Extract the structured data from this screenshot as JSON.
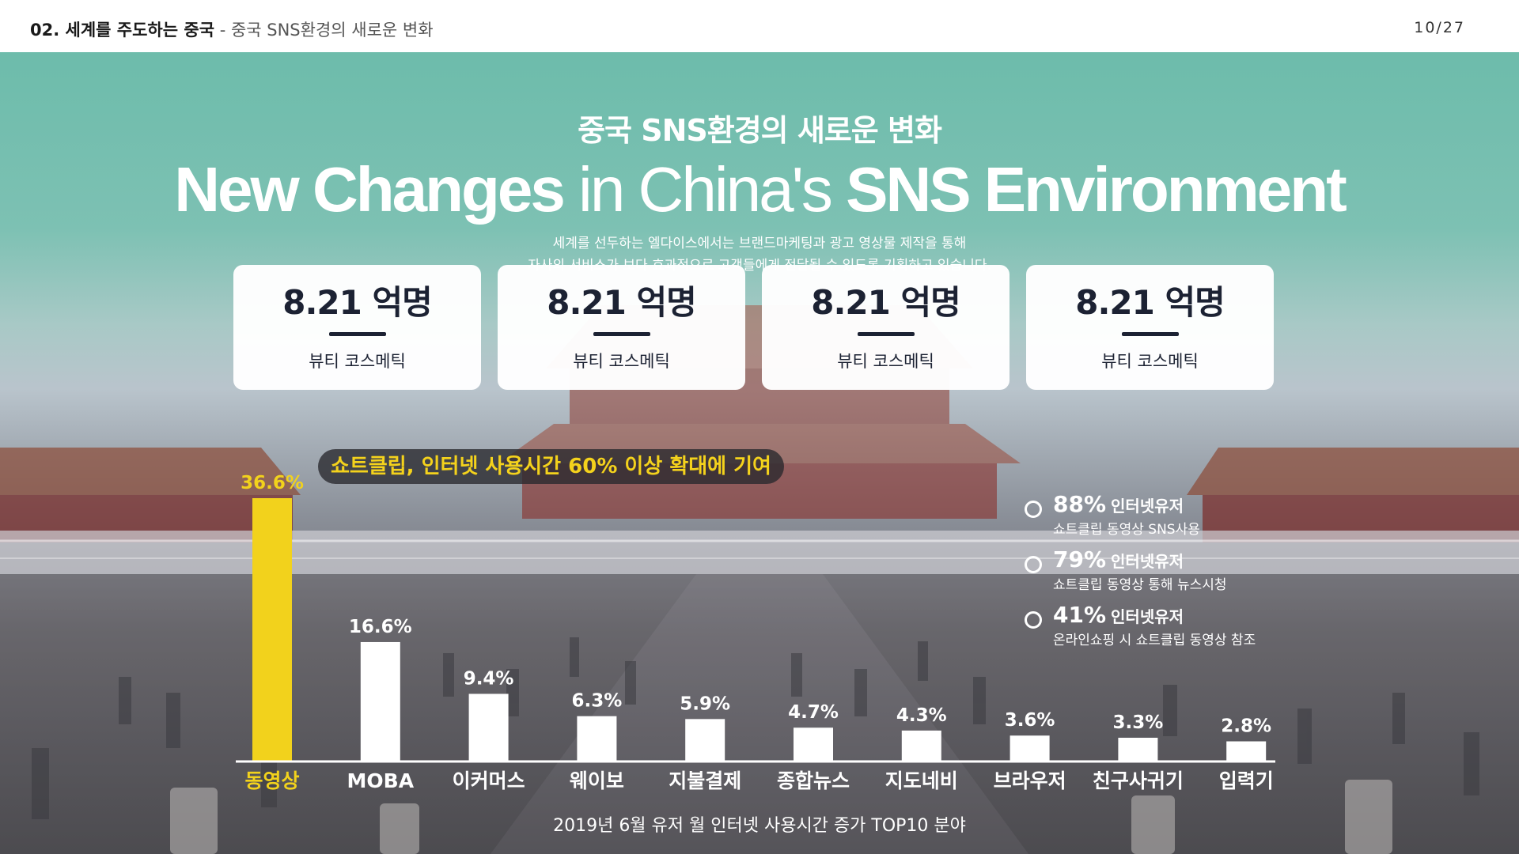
{
  "header": {
    "section": "02. 세계를 주도하는 중국",
    "separator": " - ",
    "subtitle": "중국 SNS환경의 새로운 변화",
    "page": "10/27"
  },
  "hero": {
    "title_ko": "중국 SNS환경의 새로운 변화",
    "title_en_bold1": "New Changes",
    "title_en_light": " in China's ",
    "title_en_bold2": "SNS Environment",
    "desc_line1": "세계를 선두하는 엘다이스에서는 브랜드마케팅과 광고 영상물 제작을 통해",
    "desc_line2": "자사의 서비스가 보다 효과적으로 고객들에게 전달될 수 있도록 기획하고 있습니다."
  },
  "cards": [
    {
      "value": "8.21 억명",
      "label": "뷰티 코스메틱"
    },
    {
      "value": "8.21 억명",
      "label": "뷰티 코스메틱"
    },
    {
      "value": "8.21 억명",
      "label": "뷰티 코스메틱"
    },
    {
      "value": "8.21 억명",
      "label": "뷰티 코스메틱"
    }
  ],
  "callout": "쇼트클립, 인터넷 사용시간 60% 이상 확대에 기여",
  "stats": [
    {
      "pct": "88%",
      "unit": "인터넷유저",
      "note": "쇼트클립 동영상 SNS사용"
    },
    {
      "pct": "79%",
      "unit": "인터넷유저",
      "note": "쇼트클립 동영상 통해 뉴스시청"
    },
    {
      "pct": "41%",
      "unit": "인터넷유저",
      "note": "온라인쇼핑 시 쇼트클립 동영상 참조"
    }
  ],
  "colors": {
    "highlight": "#f2d21c",
    "bar": "#ffffff",
    "text_dark": "#1c2233"
  },
  "chart_data": {
    "type": "bar",
    "categories": [
      "동영상",
      "MOBA",
      "이커머스",
      "웨이보",
      "지불결제",
      "종합뉴스",
      "지도네비",
      "브라우저",
      "친구사귀기",
      "입력기"
    ],
    "values": [
      36.6,
      16.6,
      9.4,
      6.3,
      5.9,
      4.7,
      4.3,
      3.6,
      3.3,
      2.8
    ],
    "value_labels": [
      "36.6%",
      "16.6%",
      "9.4%",
      "6.3%",
      "5.9%",
      "4.7%",
      "4.3%",
      "3.6%",
      "3.3%",
      "2.8%"
    ],
    "highlight_index": 0,
    "ylim": [
      0,
      36.6
    ],
    "title": "2019년 6월 유저 월 인터넷 사용시간 증가 TOP10 분야"
  }
}
